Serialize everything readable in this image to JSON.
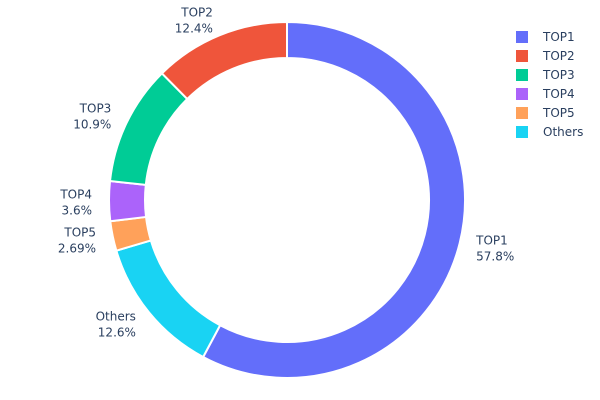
{
  "chart_data": {
    "type": "pie",
    "hole": true,
    "labels": [
      "TOP1",
      "TOP2",
      "TOP3",
      "TOP4",
      "TOP5",
      "Others"
    ],
    "values": [
      57.8,
      12.4,
      10.9,
      3.6,
      2.69,
      12.6
    ],
    "value_labels": [
      "57.8%",
      "12.4%",
      "10.9%",
      "3.6%",
      "2.69%",
      "12.6%"
    ],
    "colors": [
      "#636efa",
      "#ef553b",
      "#00cc96",
      "#ab63fa",
      "#ffa15a",
      "#19d3f3"
    ],
    "legend_position": "top-right",
    "direction": "clockwise-from-top: TOP1, Others, TOP5, TOP4, TOP3, TOP2"
  }
}
